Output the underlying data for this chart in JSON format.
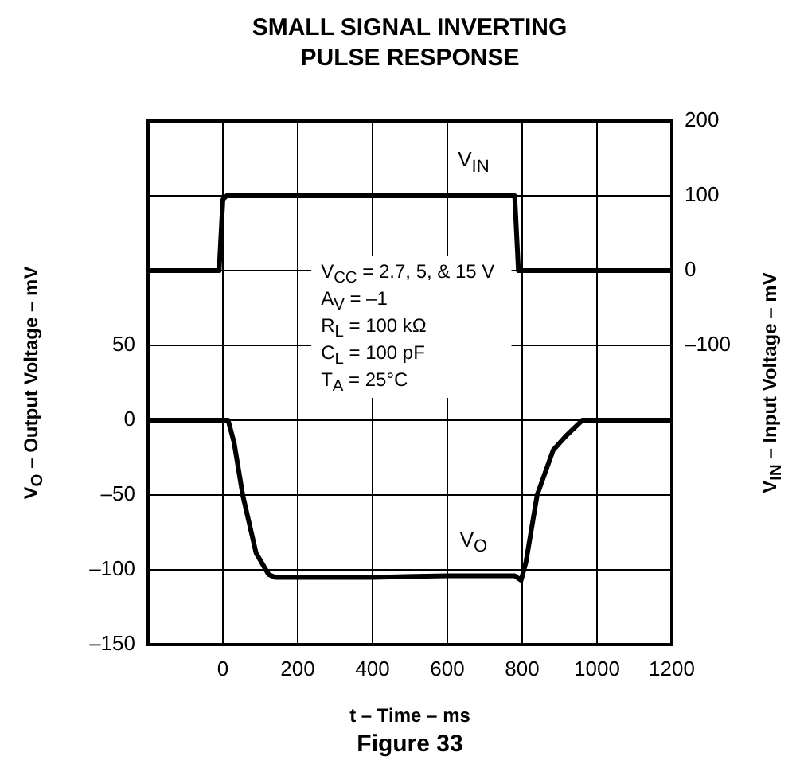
{
  "chart_data": {
    "type": "line",
    "title": "SMALL SIGNAL INVERTING PULSE RESPONSE",
    "xlabel": "t – Time – ms",
    "ylabel": "V$_{O}$ – Output Voltage – mV",
    "y2label": "V$_{IN}$ – Input Voltage – mV",
    "annotations": [
      "V$_{CC}$ = 2.7, 5, & 15 V",
      "A$_{V}$ = –1",
      "R$_{L}$ = 100 kΩ",
      "C$_{L}$ = 100 pF",
      "T$_{A}$ = 25°C",
      "Figure 33"
    ],
    "xlim": [
      -200,
      1200
    ],
    "xticks": [
      0,
      200,
      400,
      600,
      800,
      1000,
      1200
    ],
    "ylim": [
      -150,
      200
    ],
    "yticks": [
      {
        "value": -150,
        "label": "–150"
      },
      {
        "value": -100,
        "label": "–100"
      },
      {
        "value": -50,
        "label": "–50"
      },
      0,
      50
    ],
    "y2lim": [
      -500,
      200
    ],
    "y2ticks": [
      {
        "value": -100,
        "label": "–100"
      },
      0,
      100,
      200
    ],
    "grid": true,
    "legend": false,
    "marker": "none",
    "line_style": "solid",
    "series": [
      {
        "name": "V$_{IN}$",
        "axis": "y2",
        "color": "#000000",
        "x": [
          -200,
          -10,
          0,
          10,
          780,
          790,
          1200
        ],
        "values": [
          0,
          0,
          95,
          100,
          100,
          0,
          0
        ]
      },
      {
        "name": "V$_{O}$",
        "color": "#000000",
        "x": [
          -200,
          14,
          30,
          53,
          89,
          122,
          140,
          200,
          400,
          600,
          780,
          797,
          810,
          840,
          883,
          919,
          961,
          1200
        ],
        "values": [
          0,
          0,
          -15,
          -50,
          -89,
          -103,
          -105,
          -105,
          -105,
          -104,
          -104,
          -107,
          -95,
          -50,
          -20,
          -10,
          0,
          0
        ]
      }
    ]
  }
}
